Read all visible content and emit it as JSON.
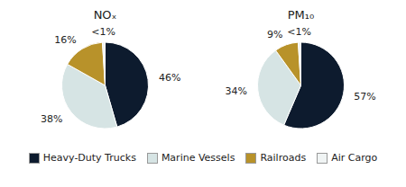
{
  "chart_data": [
    {
      "type": "pie",
      "title": "NOₓ",
      "categories": [
        "Heavy-Duty Trucks",
        "Marine Vessels",
        "Railroads",
        "Air Cargo"
      ],
      "values": [
        46,
        38,
        16,
        1
      ],
      "value_labels": [
        "46%",
        "38%",
        "16%",
        "<1%"
      ],
      "colors": [
        "#0d1b2e",
        "#d6e4e4",
        "#b8922a",
        "#f0f4f4"
      ],
      "data_labels": true,
      "legend": "bottom"
    },
    {
      "type": "pie",
      "title": "PM₁₀",
      "categories": [
        "Heavy-Duty Trucks",
        "Marine Vessels",
        "Railroads",
        "Air Cargo"
      ],
      "values": [
        57,
        34,
        9,
        1
      ],
      "value_labels": [
        "57%",
        "34%",
        "9%",
        "<1%"
      ],
      "colors": [
        "#0d1b2e",
        "#d6e4e4",
        "#b8922a",
        "#f0f4f4"
      ],
      "data_labels": true,
      "legend": "bottom"
    }
  ]
}
